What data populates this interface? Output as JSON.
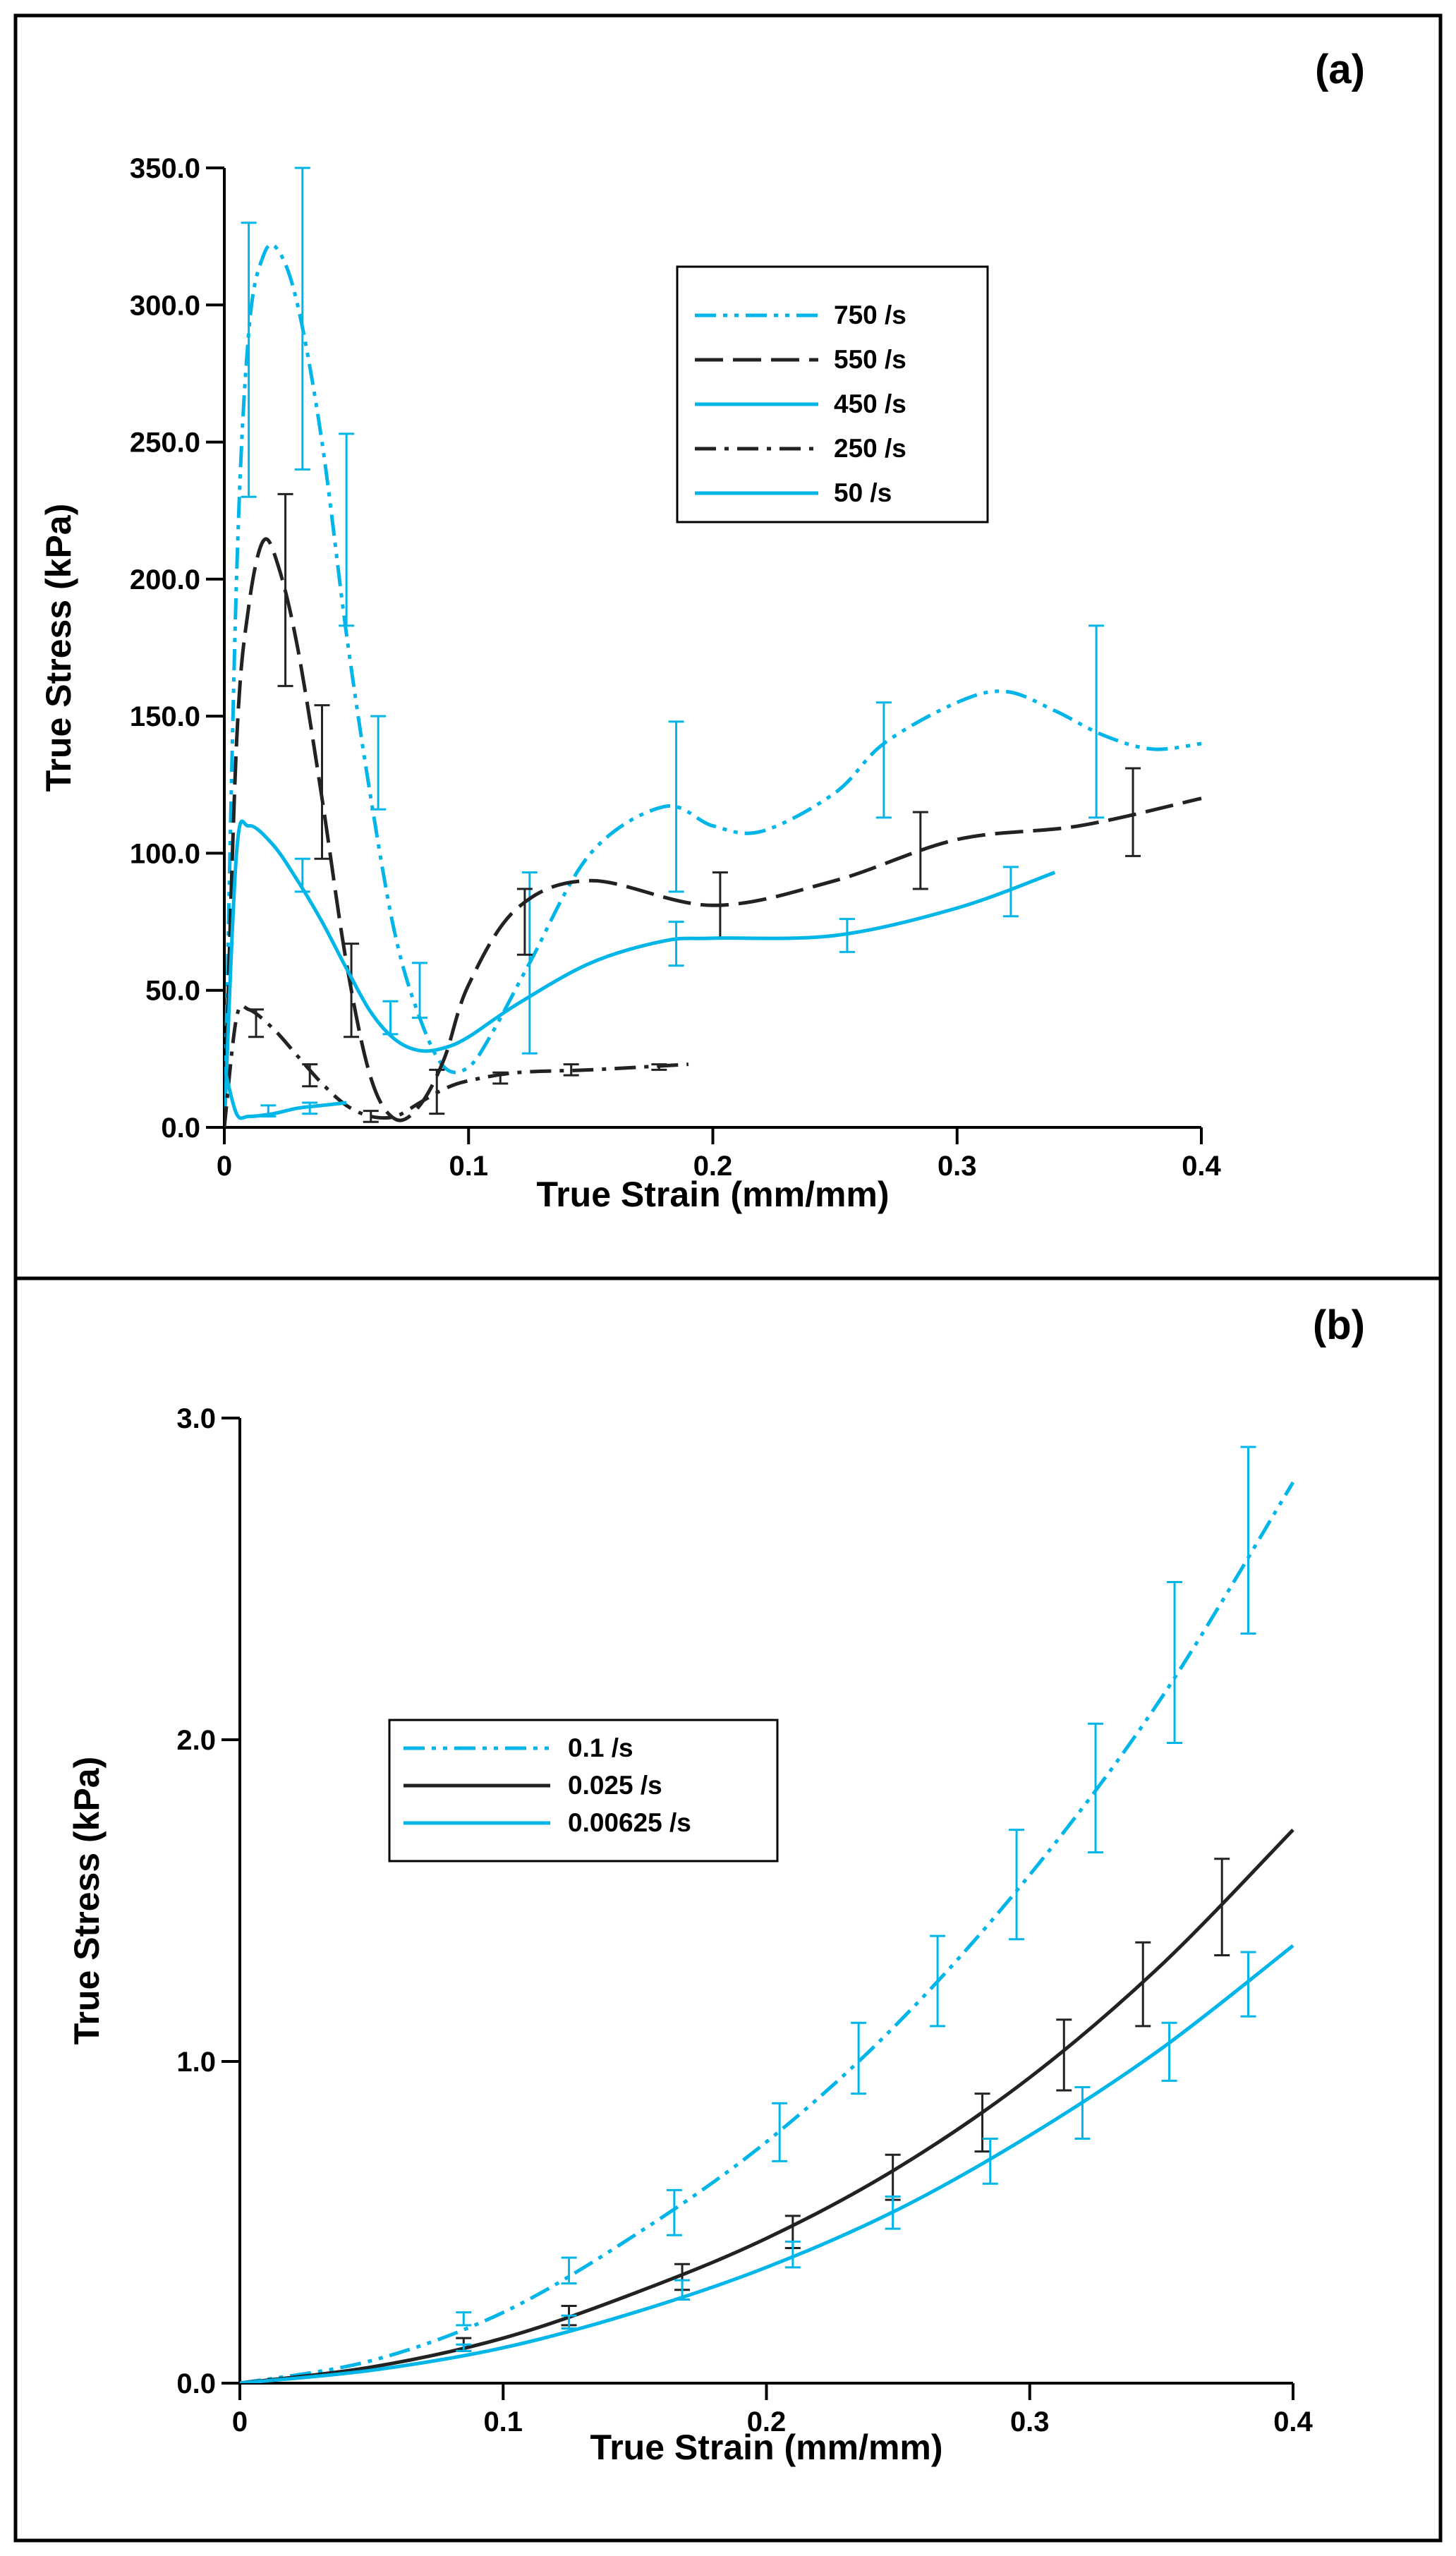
{
  "chart_data": [
    {
      "panel": "(a)",
      "type": "line",
      "xlabel": "True Strain (mm/mm)",
      "ylabel": "True Stress (kPa)",
      "xlim": [
        0,
        0.4
      ],
      "ylim": [
        0,
        350
      ],
      "xticks": [
        0,
        0.1,
        0.2,
        0.3,
        0.4
      ],
      "xtick_labels": [
        "0",
        "0.1",
        "0.2",
        "0.3",
        "0.4"
      ],
      "yticks": [
        0,
        50,
        100,
        150,
        200,
        250,
        300,
        350
      ],
      "ytick_labels": [
        "0.0",
        "50.0",
        "100.0",
        "150.0",
        "200.0",
        "250.0",
        "300.0",
        "350.0"
      ],
      "legend_position": "upper-middle",
      "series": [
        {
          "name": "750 /s",
          "color": "#00b5e8",
          "dash": "dashdotdot",
          "x": [
            0,
            0.005,
            0.01,
            0.016,
            0.022,
            0.03,
            0.04,
            0.05,
            0.06,
            0.07,
            0.08,
            0.09,
            0.1,
            0.11,
            0.125,
            0.15,
            0.18,
            0.2,
            0.22,
            0.25,
            0.27,
            0.3,
            0.32,
            0.34,
            0.36,
            0.38,
            0.4
          ],
          "y": [
            0,
            200,
            290,
            318,
            320,
            300,
            250,
            180,
            120,
            70,
            40,
            22,
            22,
            35,
            60,
            100,
            117,
            110,
            108,
            122,
            140,
            155,
            159,
            152,
            143,
            138,
            140
          ],
          "error_bars": [
            {
              "x": 0.01,
              "y": 280,
              "err": 50
            },
            {
              "x": 0.032,
              "y": 295,
              "err": 55
            },
            {
              "x": 0.05,
              "y": 218,
              "err": 35
            },
            {
              "x": 0.063,
              "y": 133,
              "err": 17
            },
            {
              "x": 0.08,
              "y": 50,
              "err": 10
            },
            {
              "x": 0.125,
              "y": 60,
              "err": 33
            },
            {
              "x": 0.185,
              "y": 117,
              "err": 31
            },
            {
              "x": 0.27,
              "y": 134,
              "err": 21
            },
            {
              "x": 0.357,
              "y": 148,
              "err": 35
            }
          ]
        },
        {
          "name": "550 /s",
          "color": "#222222",
          "dash": "longdash",
          "x": [
            0,
            0.005,
            0.01,
            0.016,
            0.022,
            0.03,
            0.04,
            0.05,
            0.06,
            0.07,
            0.08,
            0.09,
            0.1,
            0.12,
            0.15,
            0.2,
            0.25,
            0.3,
            0.35,
            0.4
          ],
          "y": [
            0,
            140,
            190,
            214,
            205,
            175,
            120,
            60,
            18,
            3,
            8,
            25,
            52,
            80,
            90,
            81,
            90,
            105,
            110,
            120
          ],
          "error_bars": [
            {
              "x": 0.025,
              "y": 196,
              "err": 35
            },
            {
              "x": 0.04,
              "y": 126,
              "err": 28
            },
            {
              "x": 0.052,
              "y": 50,
              "err": 17
            },
            {
              "x": 0.087,
              "y": 13,
              "err": 8
            },
            {
              "x": 0.123,
              "y": 75,
              "err": 12
            },
            {
              "x": 0.203,
              "y": 81,
              "err": 12
            },
            {
              "x": 0.285,
              "y": 101,
              "err": 14
            },
            {
              "x": 0.372,
              "y": 115,
              "err": 16
            }
          ]
        },
        {
          "name": "450 /s",
          "color": "#00b5e8",
          "dash": "solid",
          "x": [
            0,
            0.005,
            0.01,
            0.02,
            0.03,
            0.04,
            0.05,
            0.06,
            0.07,
            0.08,
            0.09,
            0.1,
            0.12,
            0.15,
            0.18,
            0.2,
            0.25,
            0.3,
            0.34
          ],
          "y": [
            0,
            100,
            110,
            103,
            90,
            75,
            58,
            42,
            32,
            28,
            29,
            33,
            45,
            60,
            68,
            69,
            70,
            80,
            93
          ],
          "error_bars": [
            {
              "x": 0.032,
              "y": 92,
              "err": 6
            },
            {
              "x": 0.068,
              "y": 40,
              "err": 6
            },
            {
              "x": 0.185,
              "y": 67,
              "err": 8
            },
            {
              "x": 0.255,
              "y": 70,
              "err": 6
            },
            {
              "x": 0.322,
              "y": 86,
              "err": 9
            }
          ]
        },
        {
          "name": "250 /s",
          "color": "#222222",
          "dash": "dashdot",
          "x": [
            0,
            0.005,
            0.01,
            0.02,
            0.03,
            0.04,
            0.05,
            0.06,
            0.07,
            0.08,
            0.09,
            0.1,
            0.12,
            0.15,
            0.19
          ],
          "y": [
            0,
            40,
            43,
            36,
            26,
            16,
            8,
            4,
            4,
            9,
            14,
            17,
            20,
            21,
            23
          ],
          "error_bars": [
            {
              "x": 0.013,
              "y": 38,
              "err": 5
            },
            {
              "x": 0.035,
              "y": 19,
              "err": 4
            },
            {
              "x": 0.06,
              "y": 4,
              "err": 2
            },
            {
              "x": 0.113,
              "y": 18,
              "err": 2
            },
            {
              "x": 0.142,
              "y": 21,
              "err": 2
            },
            {
              "x": 0.178,
              "y": 22,
              "err": 1
            }
          ]
        },
        {
          "name": "50 /s",
          "color": "#00b5e8",
          "dash": "solid",
          "x": [
            0,
            0.005,
            0.01,
            0.02,
            0.03,
            0.04,
            0.05
          ],
          "y": [
            22,
            5,
            4,
            5,
            7,
            8,
            9
          ],
          "error_bars": [
            {
              "x": 0.018,
              "y": 6,
              "err": 2
            },
            {
              "x": 0.035,
              "y": 7,
              "err": 2
            }
          ]
        }
      ]
    },
    {
      "panel": "(b)",
      "type": "line",
      "xlabel": "True Strain (mm/mm)",
      "ylabel": "True Stress (kPa)",
      "xlim": [
        0,
        0.4
      ],
      "ylim": [
        0,
        3
      ],
      "xticks": [
        0,
        0.1,
        0.2,
        0.3,
        0.4
      ],
      "xtick_labels": [
        "0",
        "0.1",
        "0.2",
        "0.3",
        "0.4"
      ],
      "yticks": [
        0,
        1,
        2,
        3
      ],
      "ytick_labels": [
        "0.0",
        "1.0",
        "2.0",
        "3.0"
      ],
      "legend_position": "upper-left",
      "series": [
        {
          "name": "0.1 /s",
          "color": "#00b5e8",
          "dash": "dashdotdot",
          "x": [
            0,
            0.05,
            0.1,
            0.15,
            0.2,
            0.25,
            0.3,
            0.35,
            0.4
          ],
          "y": [
            0,
            0.07,
            0.22,
            0.46,
            0.75,
            1.12,
            1.58,
            2.13,
            2.8
          ],
          "error_bars": [
            {
              "x": 0.085,
              "y": 0.2,
              "err": 0.02
            },
            {
              "x": 0.125,
              "y": 0.35,
              "err": 0.04
            },
            {
              "x": 0.165,
              "y": 0.53,
              "err": 0.07
            },
            {
              "x": 0.205,
              "y": 0.78,
              "err": 0.09
            },
            {
              "x": 0.235,
              "y": 1.01,
              "err": 0.11
            },
            {
              "x": 0.265,
              "y": 1.25,
              "err": 0.14
            },
            {
              "x": 0.295,
              "y": 1.55,
              "err": 0.17
            },
            {
              "x": 0.325,
              "y": 1.85,
              "err": 0.2
            },
            {
              "x": 0.355,
              "y": 2.24,
              "err": 0.25
            },
            {
              "x": 0.383,
              "y": 2.62,
              "err": 0.29
            }
          ]
        },
        {
          "name": "0.025 /s",
          "color": "#222222",
          "dash": "solid",
          "x": [
            0,
            0.05,
            0.1,
            0.15,
            0.2,
            0.25,
            0.3,
            0.35,
            0.4
          ],
          "y": [
            0,
            0.05,
            0.14,
            0.28,
            0.45,
            0.67,
            0.95,
            1.3,
            1.72
          ],
          "error_bars": [
            {
              "x": 0.085,
              "y": 0.12,
              "err": 0.02
            },
            {
              "x": 0.125,
              "y": 0.21,
              "err": 0.03
            },
            {
              "x": 0.168,
              "y": 0.33,
              "err": 0.04
            },
            {
              "x": 0.21,
              "y": 0.47,
              "err": 0.05
            },
            {
              "x": 0.248,
              "y": 0.64,
              "err": 0.07
            },
            {
              "x": 0.282,
              "y": 0.81,
              "err": 0.09
            },
            {
              "x": 0.313,
              "y": 1.02,
              "err": 0.11
            },
            {
              "x": 0.343,
              "y": 1.24,
              "err": 0.13
            },
            {
              "x": 0.373,
              "y": 1.48,
              "err": 0.15
            }
          ]
        },
        {
          "name": "0.00625 /s",
          "color": "#00b5e8",
          "dash": "solid",
          "x": [
            0,
            0.05,
            0.1,
            0.15,
            0.2,
            0.25,
            0.3,
            0.35,
            0.4
          ],
          "y": [
            0,
            0.04,
            0.11,
            0.22,
            0.36,
            0.54,
            0.77,
            1.04,
            1.36
          ],
          "error_bars": [
            {
              "x": 0.085,
              "y": 0.11,
              "err": 0.01
            },
            {
              "x": 0.125,
              "y": 0.19,
              "err": 0.02
            },
            {
              "x": 0.168,
              "y": 0.29,
              "err": 0.03
            },
            {
              "x": 0.21,
              "y": 0.4,
              "err": 0.04
            },
            {
              "x": 0.248,
              "y": 0.53,
              "err": 0.05
            },
            {
              "x": 0.285,
              "y": 0.69,
              "err": 0.07
            },
            {
              "x": 0.32,
              "y": 0.84,
              "err": 0.08
            },
            {
              "x": 0.353,
              "y": 1.03,
              "err": 0.09
            },
            {
              "x": 0.383,
              "y": 1.24,
              "err": 0.1
            }
          ]
        }
      ]
    }
  ]
}
